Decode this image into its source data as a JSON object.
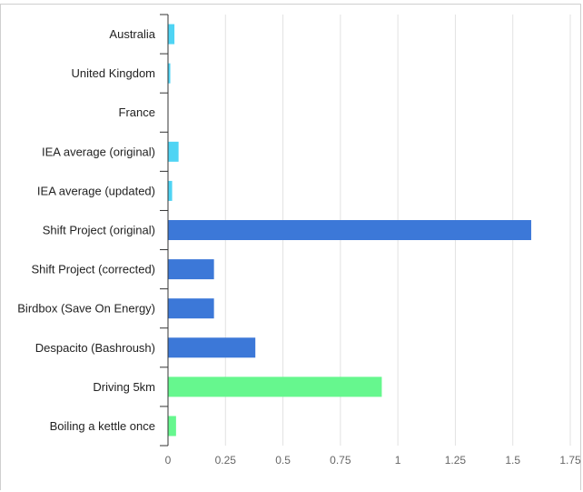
{
  "chart_data": {
    "type": "bar",
    "orientation": "horizontal",
    "categories": [
      "Australia",
      "United Kingdom",
      "France",
      "IEA average (original)",
      "IEA average (updated)",
      "Shift Project (original)",
      "Shift Project (corrected)",
      "Birdbox (Save On Energy)",
      "Despacito (Bashroush)",
      "Driving 5km",
      "Boiling a kettle once"
    ],
    "values": [
      0.028,
      0.01,
      0.0,
      0.046,
      0.018,
      1.58,
      0.2,
      0.2,
      0.38,
      0.93,
      0.035
    ],
    "colors": [
      "#4fd4f4",
      "#4fd4f4",
      "#4fd4f4",
      "#4fd4f4",
      "#4fd4f4",
      "#3c78d8",
      "#3c78d8",
      "#3c78d8",
      "#3c78d8",
      "#66f78e",
      "#66f78e"
    ],
    "x_ticks": [
      "0",
      "0.25",
      "0.5",
      "0.75",
      "1",
      "1.25",
      "1.5",
      "1.75"
    ],
    "xlim": [
      0,
      1.75
    ],
    "grid": true,
    "title": "",
    "xlabel": "",
    "ylabel": ""
  }
}
